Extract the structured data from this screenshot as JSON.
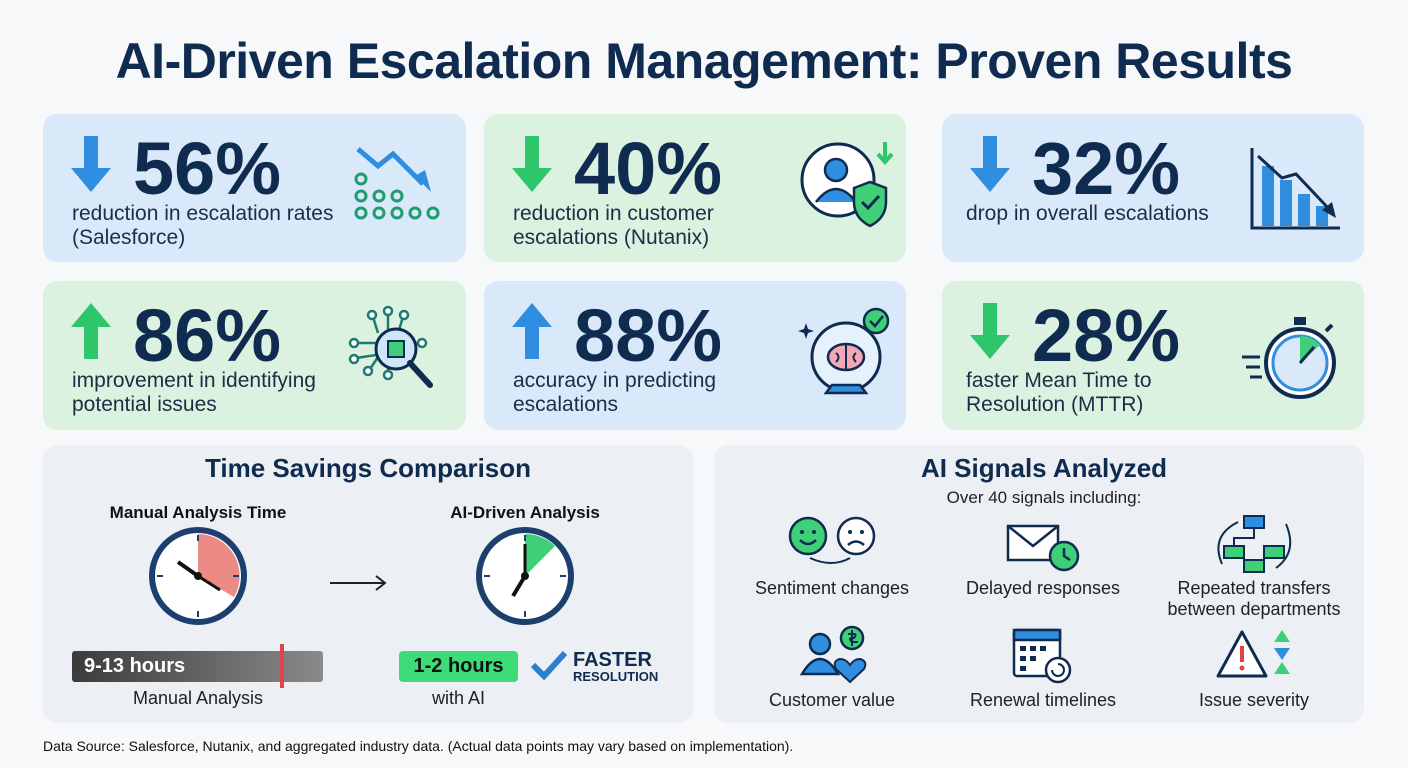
{
  "title": "AI-Driven Escalation Management: Proven Results",
  "stats": [
    {
      "value": "56%",
      "label": "reduction in escalation rates (Salesforce)"
    },
    {
      "value": "40%",
      "label": "reduction in customer escalations (Nutanix)"
    },
    {
      "value": "32%",
      "label": "drop in overall escalations"
    },
    {
      "value": "86%",
      "label": "improvement in identifying potential issues"
    },
    {
      "value": "88%",
      "label": "accuracy in predicting escalations"
    },
    {
      "value": "28%",
      "label": "faster Mean Time to Resolution (MTTR)"
    }
  ],
  "time_savings": {
    "title": "Time Savings Comparison",
    "manual": {
      "heading": "Manual Analysis Time",
      "bar_label": "9-13 hours",
      "caption": "Manual Analysis"
    },
    "ai": {
      "heading": "AI-Driven Analysis",
      "bar_label": "1-2 hours",
      "caption": "with AI",
      "badge_line1": "FASTER",
      "badge_line2": "RESOLUTION"
    }
  },
  "signals": {
    "title": "AI Signals Analyzed",
    "subtitle": "Over 40 signals including:",
    "items": [
      "Sentiment changes",
      "Delayed responses",
      "Repeated transfers between departments",
      "Customer value",
      "Renewal timelines",
      "Issue severity"
    ]
  },
  "footer": "Data Source: Salesforce, Nutanix, and aggregated industry data. (Actual data points may vary based on implementation)."
}
